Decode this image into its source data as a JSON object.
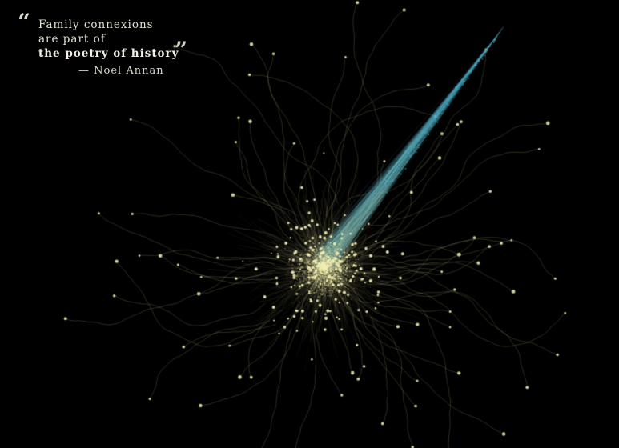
{
  "quote": {
    "open_mark": "“",
    "close_mark": "”",
    "lines": [
      "Family connexions",
      "are part of",
      "the poetry of history"
    ],
    "author": "— Noel Annan"
  },
  "colors": {
    "background": "#000000",
    "node": "#f2eeb0",
    "edge": "#d8d49a",
    "tail_edge": "#4fb0c8",
    "quote_text": "#e4e0d6"
  }
}
